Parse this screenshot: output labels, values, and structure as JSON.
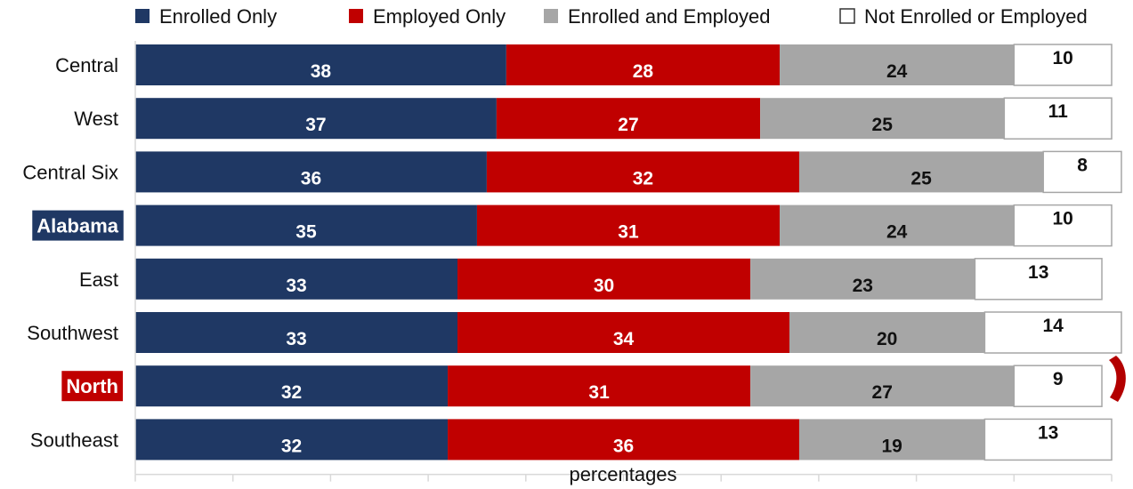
{
  "chart_data": {
    "type": "bar",
    "orientation": "horizontal",
    "stacked": true,
    "xlabel": "percentages",
    "xlim": [
      0,
      100
    ],
    "categories": [
      "Central",
      "West",
      "Central Six",
      "Alabama",
      "East",
      "Southwest",
      "North",
      "Southeast"
    ],
    "highlight": {
      "Alabama": "#1f3864",
      "North": "#c00000"
    },
    "series": [
      {
        "name": "Enrolled Only",
        "color": "#1f3864",
        "label_color": "#ffffff",
        "values": [
          38,
          37,
          36,
          35,
          33,
          33,
          32,
          32
        ]
      },
      {
        "name": "Employed Only",
        "color": "#c00000",
        "label_color": "#ffffff",
        "values": [
          28,
          27,
          32,
          31,
          30,
          34,
          31,
          36
        ]
      },
      {
        "name": "Enrolled and Employed",
        "color": "#a6a6a6",
        "label_color": "#111111",
        "values": [
          24,
          25,
          25,
          24,
          23,
          20,
          27,
          19
        ]
      },
      {
        "name": "Not Enrolled or Employed",
        "color": "#ffffff",
        "label_color": "#111111",
        "values": [
          10,
          11,
          8,
          10,
          13,
          14,
          9,
          13
        ]
      }
    ],
    "legend_position": "top",
    "grid": false
  }
}
